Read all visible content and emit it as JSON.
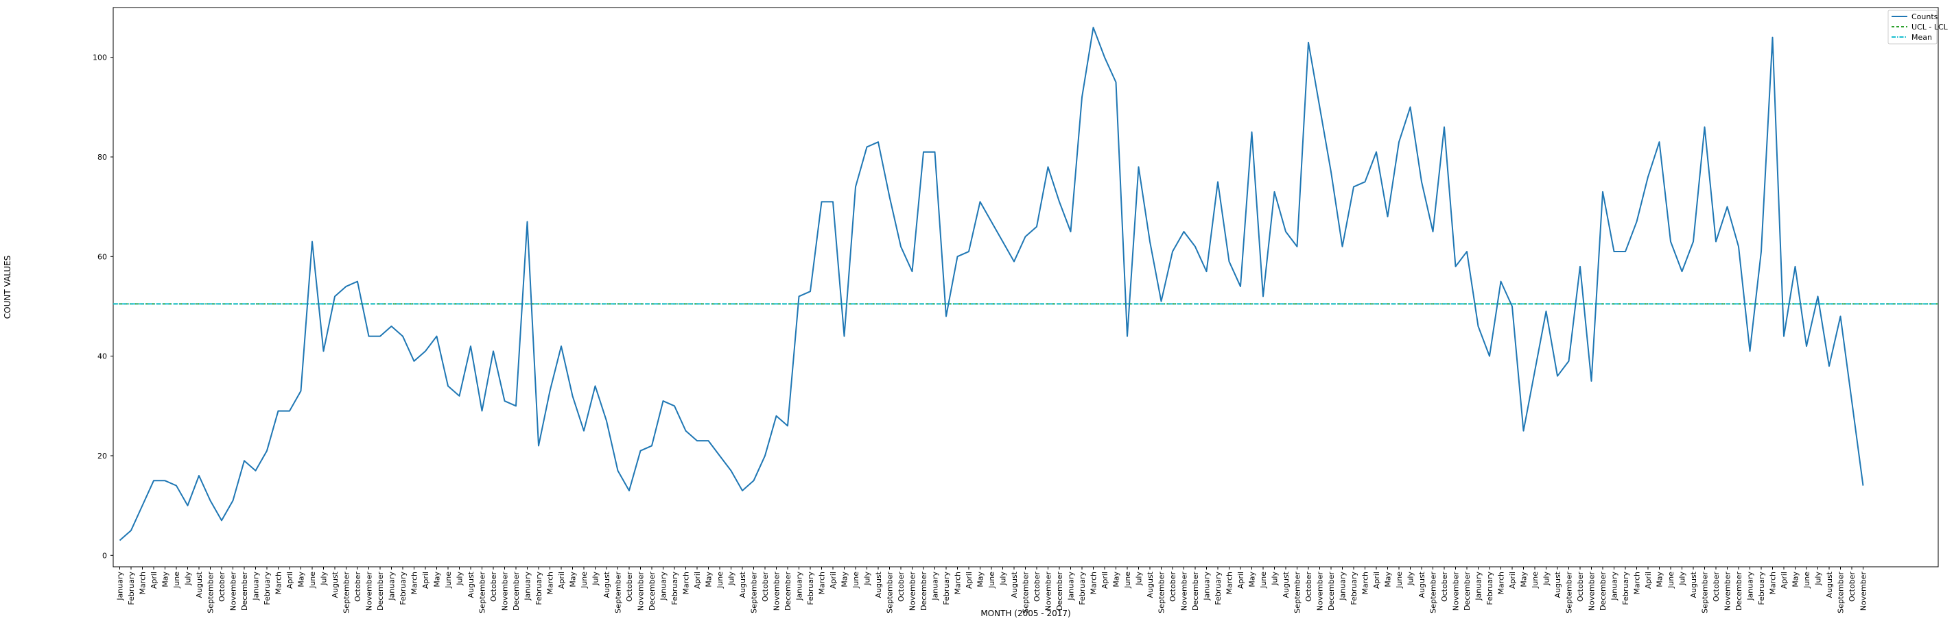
{
  "chart_data": {
    "type": "line",
    "title": "",
    "xlabel": "MONTH (2005 - 2017)",
    "ylabel": "COUNT VALUES",
    "ylim": [
      -2.3,
      110
    ],
    "yticks": [
      0,
      20,
      40,
      60,
      80,
      100
    ],
    "grid": false,
    "legend_position": "top-right",
    "categories": [
      "January",
      "February",
      "March",
      "April",
      "May",
      "June",
      "July",
      "August",
      "September",
      "October",
      "November",
      "December",
      "January",
      "February",
      "March",
      "April",
      "May",
      "June",
      "July",
      "August",
      "September",
      "October",
      "November",
      "December",
      "January",
      "February",
      "March",
      "April",
      "May",
      "June",
      "July",
      "August",
      "September",
      "October",
      "November",
      "December",
      "January",
      "February",
      "March",
      "April",
      "May",
      "June",
      "July",
      "August",
      "September",
      "October",
      "November",
      "December",
      "January",
      "February",
      "March",
      "April",
      "May",
      "June",
      "July",
      "August",
      "September",
      "October",
      "November",
      "December",
      "January",
      "February",
      "March",
      "April",
      "May",
      "June",
      "July",
      "August",
      "September",
      "October",
      "November",
      "December",
      "January",
      "February",
      "March",
      "April",
      "May",
      "June",
      "July",
      "August",
      "September",
      "October",
      "November",
      "December",
      "January",
      "February",
      "March",
      "April",
      "May",
      "June",
      "July",
      "August",
      "September",
      "October",
      "November",
      "December",
      "January",
      "February",
      "March",
      "April",
      "May",
      "June",
      "July",
      "August",
      "September",
      "October",
      "November",
      "December",
      "January",
      "February",
      "March",
      "April",
      "May",
      "June",
      "July",
      "August",
      "September",
      "October",
      "November",
      "December",
      "January",
      "February",
      "March",
      "April",
      "May",
      "June",
      "July",
      "August",
      "September",
      "October",
      "November",
      "December",
      "January",
      "February",
      "March",
      "April",
      "May",
      "June",
      "July",
      "August",
      "September",
      "October",
      "November",
      "December",
      "January",
      "February",
      "March",
      "April",
      "May",
      "June",
      "July",
      "August",
      "September",
      "October",
      "November"
    ],
    "series": [
      {
        "name": "Counts",
        "color": "#1f77b4",
        "style": "solid",
        "values": [
          3,
          5,
          10,
          15,
          15,
          14,
          10,
          16,
          11,
          7,
          11,
          19,
          17,
          21,
          29,
          29,
          33,
          63,
          41,
          52,
          54,
          55,
          44,
          44,
          46,
          44,
          39,
          41,
          44,
          34,
          32,
          42,
          29,
          41,
          31,
          30,
          67,
          22,
          33,
          42,
          32,
          25,
          34,
          27,
          17,
          13,
          21,
          22,
          31,
          30,
          25,
          23,
          23,
          20,
          17,
          13,
          15,
          20,
          28,
          26,
          52,
          53,
          71,
          71,
          44,
          74,
          82,
          83,
          72,
          62,
          57,
          81,
          81,
          48,
          60,
          61,
          71,
          67,
          63,
          59,
          64,
          66,
          78,
          71,
          65,
          92,
          106,
          100,
          95,
          44,
          78,
          63,
          51,
          61,
          65,
          62,
          57,
          75,
          59,
          54,
          85,
          52,
          73,
          65,
          62,
          103,
          90,
          77,
          62,
          74,
          75,
          81,
          68,
          83,
          90,
          75,
          65,
          86,
          58,
          61,
          46,
          40,
          55,
          50,
          25,
          37,
          49,
          36,
          39,
          58,
          35,
          73,
          61,
          61,
          67,
          76,
          83,
          63,
          57,
          63,
          86,
          63,
          70,
          62,
          41,
          61,
          104,
          44,
          58,
          42,
          52,
          38,
          48,
          31,
          14
        ]
      },
      {
        "name": "UCL - LCL",
        "color": "#2ca02c",
        "style": "dashed",
        "values_constant": 50.5
      },
      {
        "name": "Mean",
        "color": "#17becf",
        "style": "dashdot",
        "values_constant": 50.5
      }
    ]
  }
}
